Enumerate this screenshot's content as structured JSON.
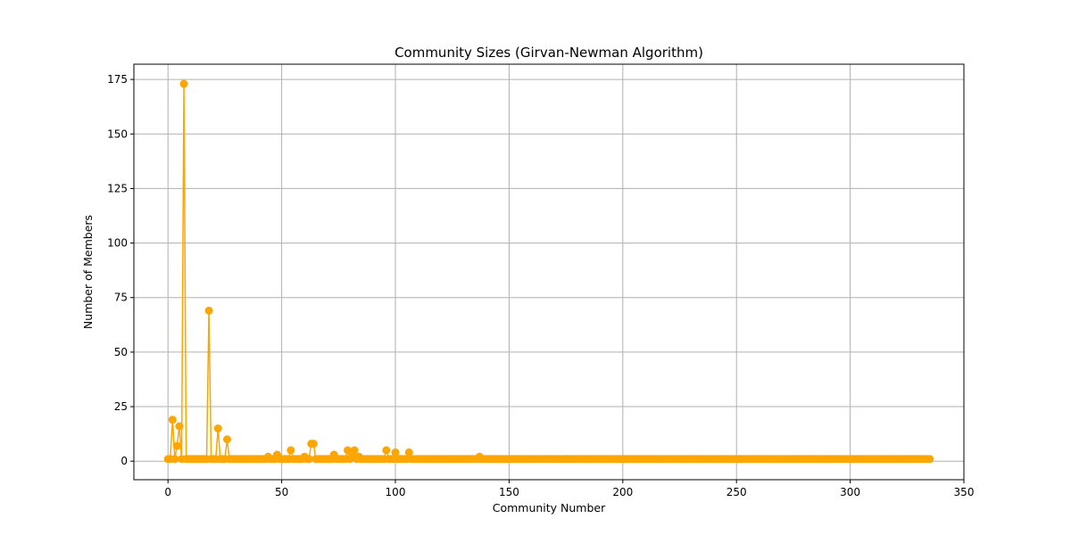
{
  "chart_data": {
    "type": "line",
    "title": "Community Sizes (Girvan-Newman Algorithm)",
    "xlabel": "Community Number",
    "ylabel": "Number of Members",
    "xlim": [
      -15,
      350
    ],
    "ylim": [
      -8.5,
      182
    ],
    "xticks": [
      0,
      50,
      100,
      150,
      200,
      250,
      300,
      350
    ],
    "yticks": [
      0,
      25,
      50,
      75,
      100,
      125,
      150,
      175
    ],
    "grid": true,
    "color": "#ffa500",
    "marker": "circle",
    "n_points": 336,
    "baseline_value": 1,
    "points": [
      [
        2,
        19
      ],
      [
        3,
        1
      ],
      [
        4,
        7
      ],
      [
        5,
        16
      ],
      [
        7,
        173
      ],
      [
        18,
        69
      ],
      [
        22,
        15
      ],
      [
        26,
        10
      ],
      [
        44,
        2
      ],
      [
        48,
        3
      ],
      [
        54,
        5
      ],
      [
        60,
        2
      ],
      [
        63,
        8
      ],
      [
        64,
        8
      ],
      [
        73,
        3
      ],
      [
        79,
        5
      ],
      [
        81,
        2
      ],
      [
        82,
        5
      ],
      [
        84,
        2
      ],
      [
        96,
        5
      ],
      [
        100,
        4
      ],
      [
        106,
        4
      ],
      [
        137,
        2
      ]
    ]
  }
}
